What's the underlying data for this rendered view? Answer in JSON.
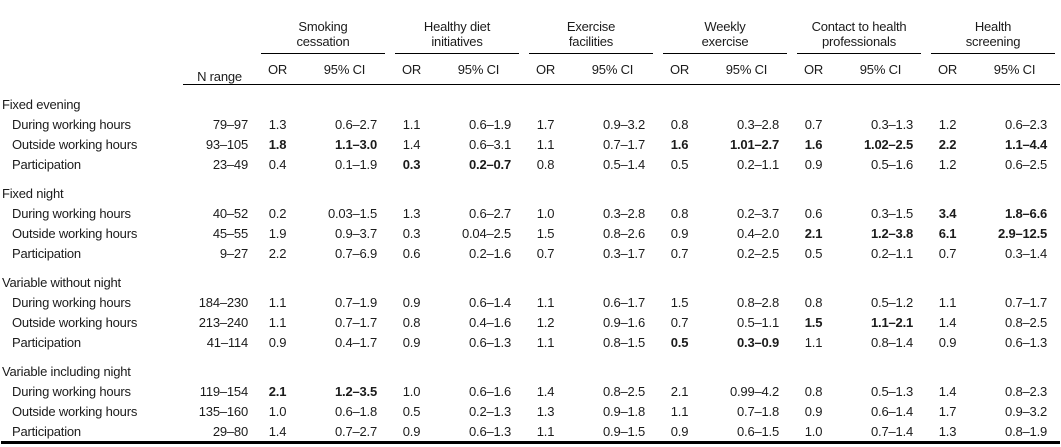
{
  "table": {
    "n_range_label": "N range",
    "or_label": "OR",
    "ci_label": "95% CI",
    "groups": [
      {
        "lines": [
          "Smoking",
          "cessation"
        ]
      },
      {
        "lines": [
          "Healthy diet",
          "initiatives"
        ]
      },
      {
        "lines": [
          "Exercise",
          "facilities"
        ]
      },
      {
        "lines": [
          "Weekly",
          "exercise"
        ]
      },
      {
        "lines": [
          "Contact to health",
          "professionals"
        ]
      },
      {
        "lines": [
          "Health",
          "screening"
        ]
      }
    ],
    "sections": [
      {
        "label": "Fixed evening",
        "rows": [
          {
            "label": "During working hours",
            "n_range": "79–97",
            "cells": [
              {
                "or": "1.3",
                "ci": "0.6–2.7"
              },
              {
                "or": "1.1",
                "ci": "0.6–1.9"
              },
              {
                "or": "1.7",
                "ci": "0.9–3.2"
              },
              {
                "or": "0.8",
                "ci": "0.3–2.8"
              },
              {
                "or": "0.7",
                "ci": "0.3–1.3"
              },
              {
                "or": "1.2",
                "ci": "0.6–2.3"
              }
            ]
          },
          {
            "label": "Outside working hours",
            "n_range": "93–105",
            "cells": [
              {
                "or": "1.8",
                "ci": "1.1–3.0",
                "b": true
              },
              {
                "or": "1.4",
                "ci": "0.6–3.1"
              },
              {
                "or": "1.1",
                "ci": "0.7–1.7"
              },
              {
                "or": "1.6",
                "ci": "1.01–2.7",
                "b": true
              },
              {
                "or": "1.6",
                "ci": "1.02–2.5",
                "b": true
              },
              {
                "or": "2.2",
                "ci": "1.1–4.4",
                "b": true
              }
            ]
          },
          {
            "label": "Participation",
            "n_range": "23–49",
            "cells": [
              {
                "or": "0.4",
                "ci": "0.1–1.9"
              },
              {
                "or": "0.3",
                "ci": "0.2–0.7",
                "b": true
              },
              {
                "or": "0.8",
                "ci": "0.5–1.4"
              },
              {
                "or": "0.5",
                "ci": "0.2–1.1"
              },
              {
                "or": "0.9",
                "ci": "0.5–1.6"
              },
              {
                "or": "1.2",
                "ci": "0.6–2.5"
              }
            ]
          }
        ]
      },
      {
        "label": "Fixed night",
        "rows": [
          {
            "label": "During working hours",
            "n_range": "40–52",
            "cells": [
              {
                "or": "0.2",
                "ci": "0.03–1.5"
              },
              {
                "or": "1.3",
                "ci": "0.6–2.7"
              },
              {
                "or": "1.0",
                "ci": "0.3–2.8"
              },
              {
                "or": "0.8",
                "ci": "0.2–3.7"
              },
              {
                "or": "0.6",
                "ci": "0.3–1.5"
              },
              {
                "or": "3.4",
                "ci": "1.8–6.6",
                "b": true
              }
            ]
          },
          {
            "label": "Outside working hours",
            "n_range": "45–55",
            "cells": [
              {
                "or": "1.9",
                "ci": "0.9–3.7"
              },
              {
                "or": "0.3",
                "ci": "0.04–2.5"
              },
              {
                "or": "1.5",
                "ci": "0.8–2.6"
              },
              {
                "or": "0.9",
                "ci": "0.4–2.0"
              },
              {
                "or": "2.1",
                "ci": "1.2–3.8",
                "b": true
              },
              {
                "or": "6.1",
                "ci": "2.9–12.5",
                "b": true
              }
            ]
          },
          {
            "label": "Participation",
            "n_range": "9–27",
            "cells": [
              {
                "or": "2.2",
                "ci": "0.7–6.9"
              },
              {
                "or": "0.6",
                "ci": "0.2–1.6"
              },
              {
                "or": "0.7",
                "ci": "0.3–1.7"
              },
              {
                "or": "0.7",
                "ci": "0.2–2.5"
              },
              {
                "or": "0.5",
                "ci": "0.2–1.1"
              },
              {
                "or": "0.7",
                "ci": "0.3–1.4"
              }
            ]
          }
        ]
      },
      {
        "label": "Variable without night",
        "rows": [
          {
            "label": "During working hours",
            "n_range": "184–230",
            "cells": [
              {
                "or": "1.1",
                "ci": "0.7–1.9"
              },
              {
                "or": "0.9",
                "ci": "0.6–1.4"
              },
              {
                "or": "1.1",
                "ci": "0.6–1.7"
              },
              {
                "or": "1.5",
                "ci": "0.8–2.8"
              },
              {
                "or": "0.8",
                "ci": "0.5–1.2"
              },
              {
                "or": "1.1",
                "ci": "0.7–1.7"
              }
            ]
          },
          {
            "label": "Outside working hours",
            "n_range": "213–240",
            "cells": [
              {
                "or": "1.1",
                "ci": "0.7–1.7"
              },
              {
                "or": "0.8",
                "ci": "0.4–1.6"
              },
              {
                "or": "1.2",
                "ci": "0.9–1.6"
              },
              {
                "or": "0.7",
                "ci": "0.5–1.1"
              },
              {
                "or": "1.5",
                "ci": "1.1–2.1",
                "b": true
              },
              {
                "or": "1.4",
                "ci": "0.8–2.5"
              }
            ]
          },
          {
            "label": "Participation",
            "n_range": "41–114",
            "cells": [
              {
                "or": "0.9",
                "ci": "0.4–1.7"
              },
              {
                "or": "0.9",
                "ci": "0.6–1.3"
              },
              {
                "or": "1.1",
                "ci": "0.8–1.5"
              },
              {
                "or": "0.5",
                "ci": "0.3–0.9",
                "b": true
              },
              {
                "or": "1.1",
                "ci": "0.8–1.4"
              },
              {
                "or": "0.9",
                "ci": "0.6–1.3"
              }
            ]
          }
        ]
      },
      {
        "label": "Variable including night",
        "rows": [
          {
            "label": "During working hours",
            "n_range": "119–154",
            "cells": [
              {
                "or": "2.1",
                "ci": "1.2–3.5",
                "b": true
              },
              {
                "or": "1.0",
                "ci": "0.6–1.6"
              },
              {
                "or": "1.4",
                "ci": "0.8–2.5"
              },
              {
                "or": "2.1",
                "ci": "0.99–4.2"
              },
              {
                "or": "0.8",
                "ci": "0.5–1.3"
              },
              {
                "or": "1.4",
                "ci": "0.8–2.3"
              }
            ]
          },
          {
            "label": "Outside working hours",
            "n_range": "135–160",
            "cells": [
              {
                "or": "1.0",
                "ci": "0.6–1.8"
              },
              {
                "or": "0.5",
                "ci": "0.2–1.3"
              },
              {
                "or": "1.3",
                "ci": "0.9–1.8"
              },
              {
                "or": "1.1",
                "ci": "0.7–1.8"
              },
              {
                "or": "0.9",
                "ci": "0.6–1.4"
              },
              {
                "or": "1.7",
                "ci": "0.9–3.2"
              }
            ]
          },
          {
            "label": "Participation",
            "n_range": "29–80",
            "cells": [
              {
                "or": "1.4",
                "ci": "0.7–2.7"
              },
              {
                "or": "0.9",
                "ci": "0.6–1.3"
              },
              {
                "or": "1.1",
                "ci": "0.9–1.5"
              },
              {
                "or": "0.9",
                "ci": "0.6–1.5"
              },
              {
                "or": "1.0",
                "ci": "0.7–1.4"
              },
              {
                "or": "1.3",
                "ci": "0.8–1.9"
              }
            ]
          }
        ]
      }
    ]
  }
}
